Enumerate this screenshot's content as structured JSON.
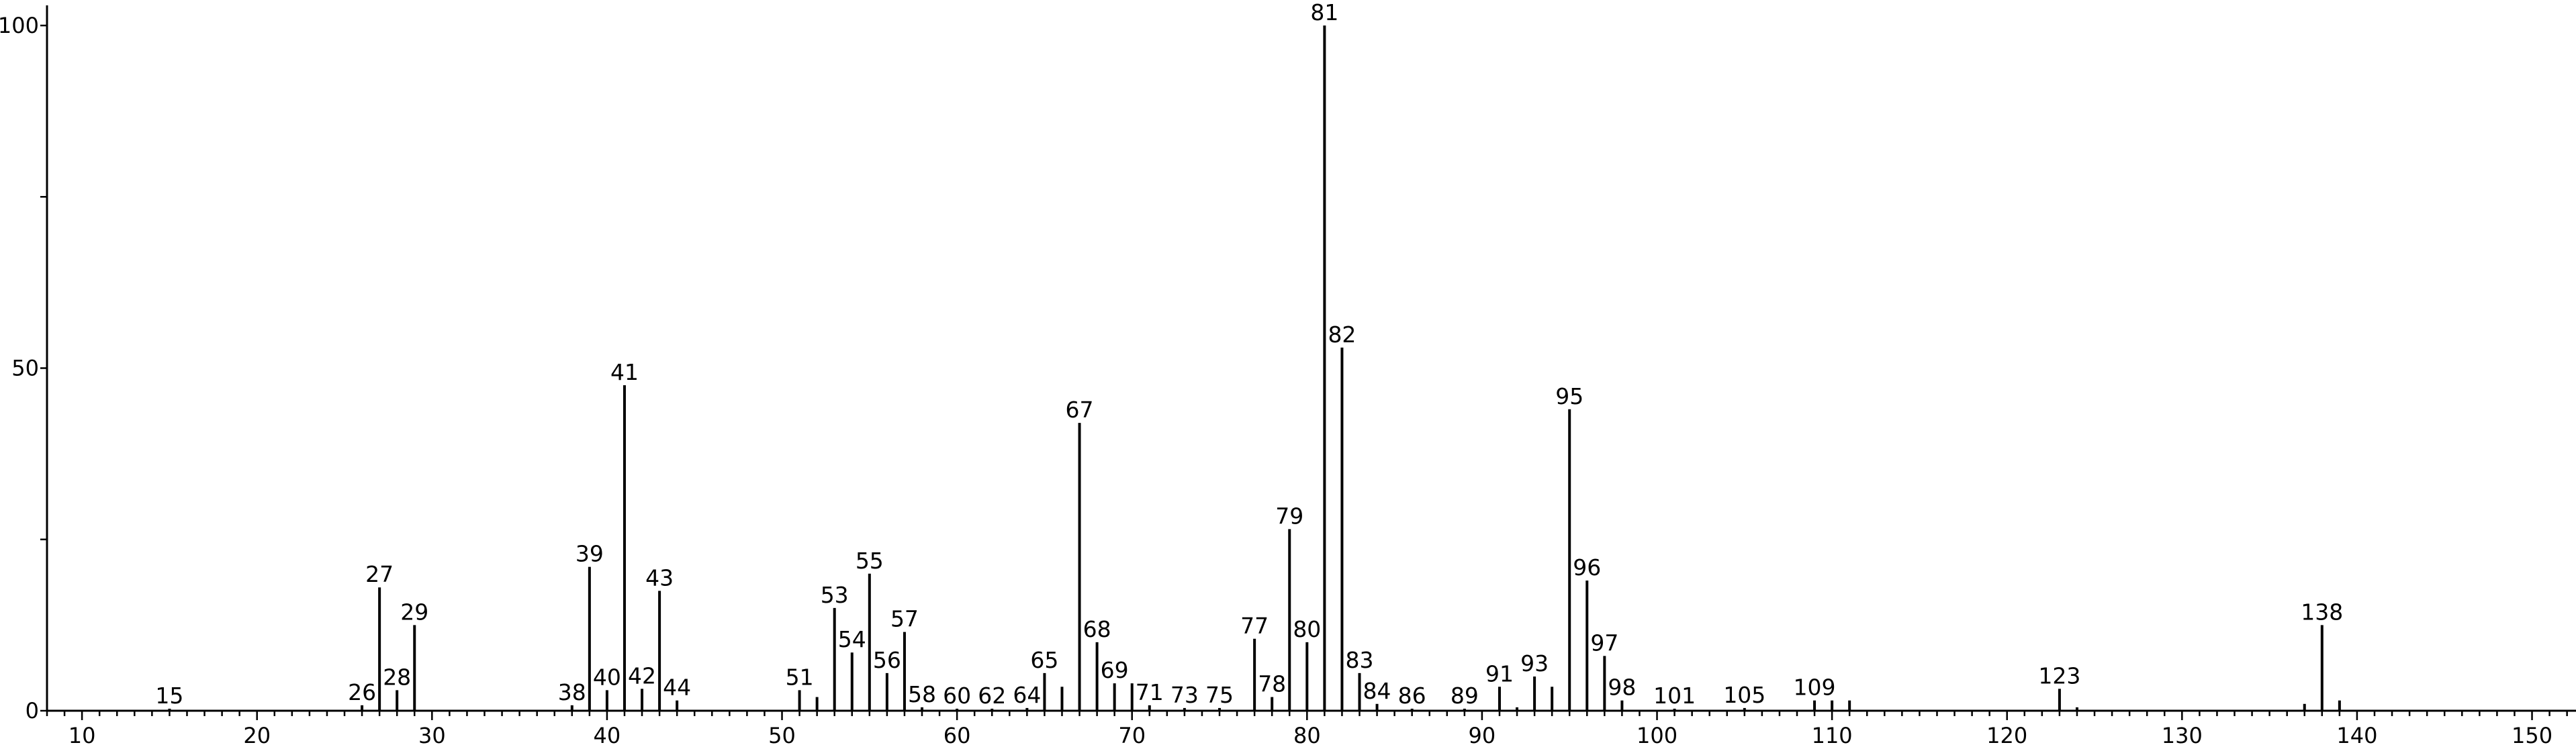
{
  "chart_data": {
    "type": "bar",
    "title": "",
    "xlabel": "",
    "ylabel": "",
    "xlim": [
      8,
      152
    ],
    "ylim": [
      0,
      101
    ],
    "x_ticks": [
      10,
      20,
      30,
      40,
      50,
      60,
      70,
      80,
      90,
      100,
      110,
      120,
      130,
      140,
      150
    ],
    "y_ticks": [
      0,
      50,
      100
    ],
    "x_minor_step": 1,
    "y_minor_step": 25,
    "grid": false,
    "peaks": [
      {
        "mz": 15,
        "intensity": 0.3,
        "label": "15"
      },
      {
        "mz": 26,
        "intensity": 0.8,
        "label": "26"
      },
      {
        "mz": 27,
        "intensity": 18.0,
        "label": "27"
      },
      {
        "mz": 28,
        "intensity": 3.0,
        "label": "28"
      },
      {
        "mz": 29,
        "intensity": 12.5,
        "label": "29"
      },
      {
        "mz": 38,
        "intensity": 0.8,
        "label": "38"
      },
      {
        "mz": 39,
        "intensity": 21.0,
        "label": "39"
      },
      {
        "mz": 40,
        "intensity": 3.0,
        "label": "40"
      },
      {
        "mz": 41,
        "intensity": 47.5,
        "label": "41"
      },
      {
        "mz": 42,
        "intensity": 3.2,
        "label": "42"
      },
      {
        "mz": 43,
        "intensity": 17.5,
        "label": "43"
      },
      {
        "mz": 44,
        "intensity": 1.5,
        "label": "44"
      },
      {
        "mz": 51,
        "intensity": 3.0,
        "label": "51"
      },
      {
        "mz": 52,
        "intensity": 2.0,
        "label": ""
      },
      {
        "mz": 53,
        "intensity": 15.0,
        "label": "53"
      },
      {
        "mz": 54,
        "intensity": 8.5,
        "label": "54"
      },
      {
        "mz": 55,
        "intensity": 20.0,
        "label": "55"
      },
      {
        "mz": 56,
        "intensity": 5.5,
        "label": "56"
      },
      {
        "mz": 57,
        "intensity": 11.5,
        "label": "57"
      },
      {
        "mz": 58,
        "intensity": 0.5,
        "label": "58"
      },
      {
        "mz": 60,
        "intensity": 0.3,
        "label": "60"
      },
      {
        "mz": 62,
        "intensity": 0.3,
        "label": "62"
      },
      {
        "mz": 64,
        "intensity": 0.4,
        "label": "64"
      },
      {
        "mz": 65,
        "intensity": 5.5,
        "label": "65"
      },
      {
        "mz": 66,
        "intensity": 3.5,
        "label": ""
      },
      {
        "mz": 67,
        "intensity": 42.0,
        "label": "67"
      },
      {
        "mz": 68,
        "intensity": 10.0,
        "label": "68"
      },
      {
        "mz": 69,
        "intensity": 4.0,
        "label": "69"
      },
      {
        "mz": 70,
        "intensity": 4.0,
        "label": ""
      },
      {
        "mz": 71,
        "intensity": 0.8,
        "label": "71"
      },
      {
        "mz": 73,
        "intensity": 0.4,
        "label": "73"
      },
      {
        "mz": 75,
        "intensity": 0.4,
        "label": "75"
      },
      {
        "mz": 77,
        "intensity": 10.5,
        "label": "77"
      },
      {
        "mz": 78,
        "intensity": 2.0,
        "label": "78"
      },
      {
        "mz": 79,
        "intensity": 26.5,
        "label": "79"
      },
      {
        "mz": 80,
        "intensity": 10.0,
        "label": "80"
      },
      {
        "mz": 81,
        "intensity": 100,
        "label": "81"
      },
      {
        "mz": 82,
        "intensity": 53.0,
        "label": "82"
      },
      {
        "mz": 83,
        "intensity": 5.5,
        "label": "83"
      },
      {
        "mz": 84,
        "intensity": 1.0,
        "label": "84"
      },
      {
        "mz": 86,
        "intensity": 0.3,
        "label": "86"
      },
      {
        "mz": 89,
        "intensity": 0.3,
        "label": "89"
      },
      {
        "mz": 91,
        "intensity": 3.5,
        "label": "91"
      },
      {
        "mz": 92,
        "intensity": 0.5,
        "label": ""
      },
      {
        "mz": 93,
        "intensity": 5.0,
        "label": "93"
      },
      {
        "mz": 94,
        "intensity": 3.5,
        "label": ""
      },
      {
        "mz": 95,
        "intensity": 44.0,
        "label": "95"
      },
      {
        "mz": 96,
        "intensity": 19.0,
        "label": "96"
      },
      {
        "mz": 97,
        "intensity": 8.0,
        "label": "97"
      },
      {
        "mz": 98,
        "intensity": 1.5,
        "label": "98"
      },
      {
        "mz": 101,
        "intensity": 0.3,
        "label": "101"
      },
      {
        "mz": 105,
        "intensity": 0.4,
        "label": "105"
      },
      {
        "mz": 109,
        "intensity": 1.5,
        "label": "109"
      },
      {
        "mz": 110,
        "intensity": 1.5,
        "label": ""
      },
      {
        "mz": 111,
        "intensity": 1.5,
        "label": ""
      },
      {
        "mz": 123,
        "intensity": 3.2,
        "label": "123"
      },
      {
        "mz": 124,
        "intensity": 0.5,
        "label": ""
      },
      {
        "mz": 137,
        "intensity": 1.0,
        "label": ""
      },
      {
        "mz": 138,
        "intensity": 12.5,
        "label": "138"
      },
      {
        "mz": 139,
        "intensity": 1.5,
        "label": ""
      }
    ]
  }
}
